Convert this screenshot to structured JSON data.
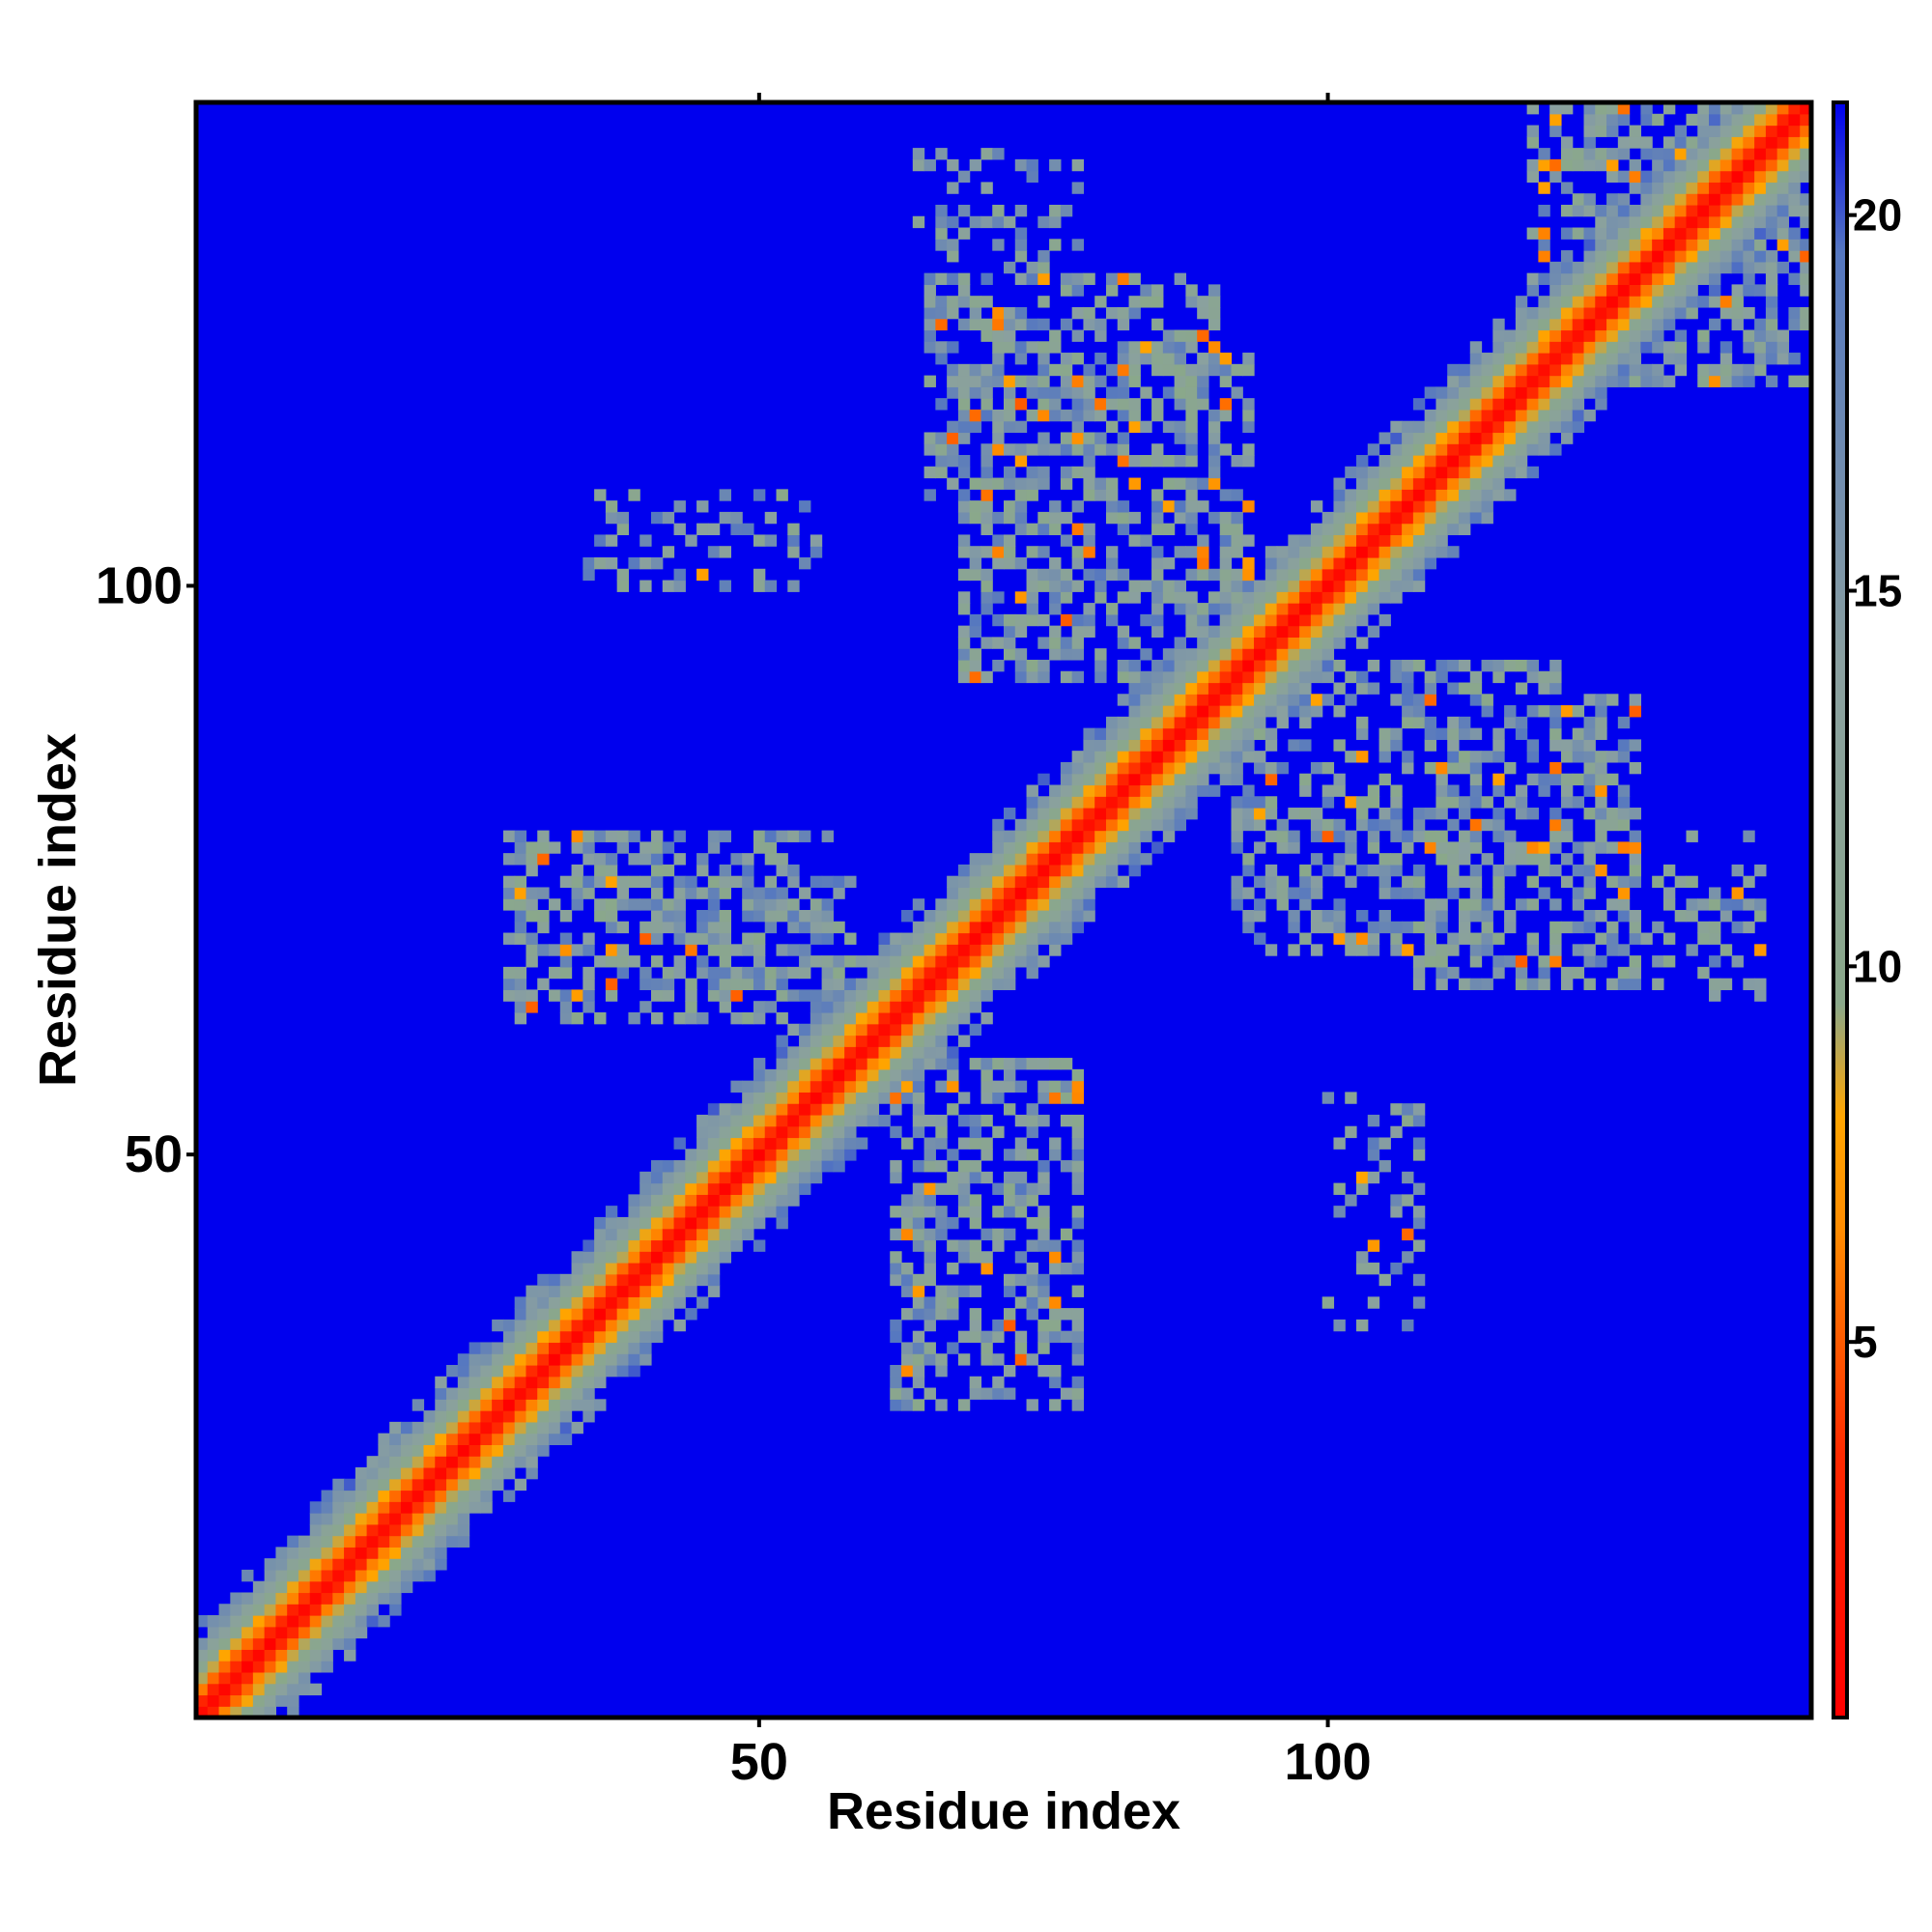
{
  "chart_data": {
    "type": "heatmap",
    "title": "",
    "xlabel": "Residue index",
    "ylabel": "Residue index",
    "n_residues": 142,
    "xlim": [
      1,
      142
    ],
    "ylim": [
      1,
      142
    ],
    "x_ticks": [
      50,
      100
    ],
    "y_ticks": [
      50,
      100
    ],
    "colorbar": {
      "ticks": [
        5,
        10,
        15,
        20
      ],
      "range": [
        0,
        21.5
      ],
      "stops": [
        {
          "value": 0,
          "color": "#ff0000"
        },
        {
          "value": 3.5,
          "color": "#ff2a00"
        },
        {
          "value": 6.5,
          "color": "#ff8c00"
        },
        {
          "value": 8.0,
          "color": "#ffa500"
        },
        {
          "value": 9.5,
          "color": "#8aa88a"
        },
        {
          "value": 14.0,
          "color": "#8aa0a0"
        },
        {
          "value": 19.5,
          "color": "#5577c0"
        },
        {
          "value": 21.5,
          "color": "#0000ee"
        }
      ]
    },
    "background_color": "#0000ee",
    "structure": {
      "diagonal_band_width": 6,
      "contact_regions": [
        {
          "residues_a": [
            28,
            58
          ],
          "residues_b": [
            62,
            78
          ],
          "density": 0.55
        },
        {
          "residues_a": [
            68,
            93
          ],
          "residues_b": [
            92,
            110
          ],
          "density": 0.5
        },
        {
          "residues_a": [
            65,
            90
          ],
          "residues_b": [
            108,
            127
          ],
          "density": 0.55
        },
        {
          "residues_a": [
            100,
            120
          ],
          "residues_b": [
            70,
            93
          ],
          "density": 0.5
        },
        {
          "residues_a": [
            118,
            142
          ],
          "residues_b": [
            125,
            142
          ],
          "density": 0.55
        },
        {
          "residues_a": [
            35,
            55
          ],
          "residues_b": [
            100,
            108
          ],
          "density": 0.25
        },
        {
          "residues_a": [
            64,
            78
          ],
          "residues_b": [
            130,
            138
          ],
          "density": 0.25
        },
        {
          "residues_a": [
            100,
            108
          ],
          "residues_b": [
            40,
            55
          ],
          "density": 0.25
        },
        {
          "residues_a": [
            125,
            135
          ],
          "residues_b": [
            65,
            75
          ],
          "density": 0.25
        }
      ]
    }
  }
}
